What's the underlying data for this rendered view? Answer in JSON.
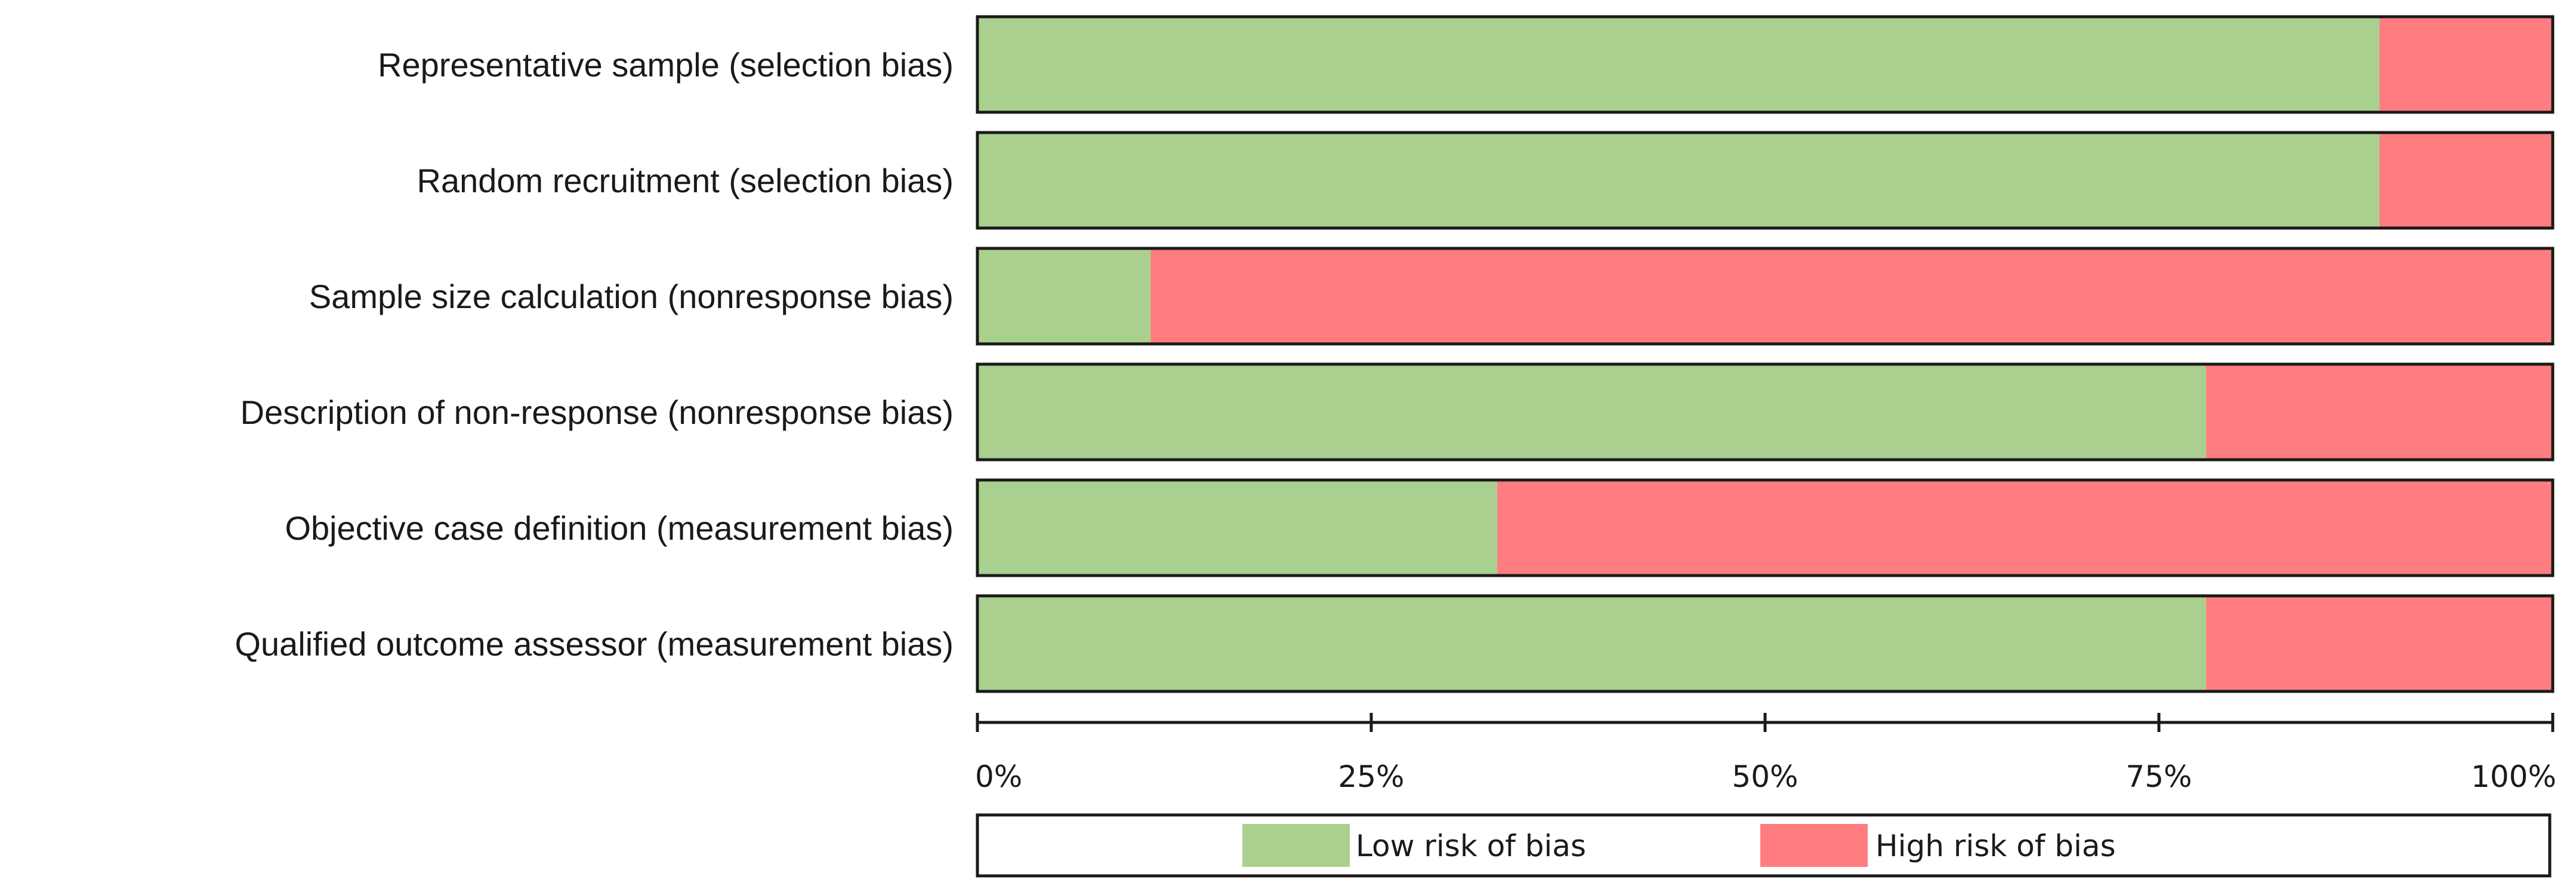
{
  "chart_data": {
    "type": "bar",
    "orientation": "horizontal",
    "stacked": true,
    "categories": [
      "Representative sample (selection bias)",
      "Random recruitment (selection bias)",
      "Sample size calculation (nonresponse bias)",
      "Description of non-response (nonresponse bias)",
      "Objective case definition (measurement bias)",
      "Qualified outcome assessor (measurement bias)"
    ],
    "series": [
      {
        "name": "Low risk of bias",
        "color": "#a9d08e",
        "values": [
          89,
          89,
          11,
          78,
          33,
          78
        ]
      },
      {
        "name": "High risk of bias",
        "color": "#ff7c80",
        "values": [
          11,
          11,
          89,
          22,
          67,
          22
        ]
      }
    ],
    "xlim": [
      0,
      100
    ],
    "xticks": [
      0,
      25,
      50,
      75,
      100
    ],
    "xtick_labels": [
      "0%",
      "25%",
      "50%",
      "75%",
      "100%"
    ],
    "legend_position": "bottom",
    "grid": false
  }
}
